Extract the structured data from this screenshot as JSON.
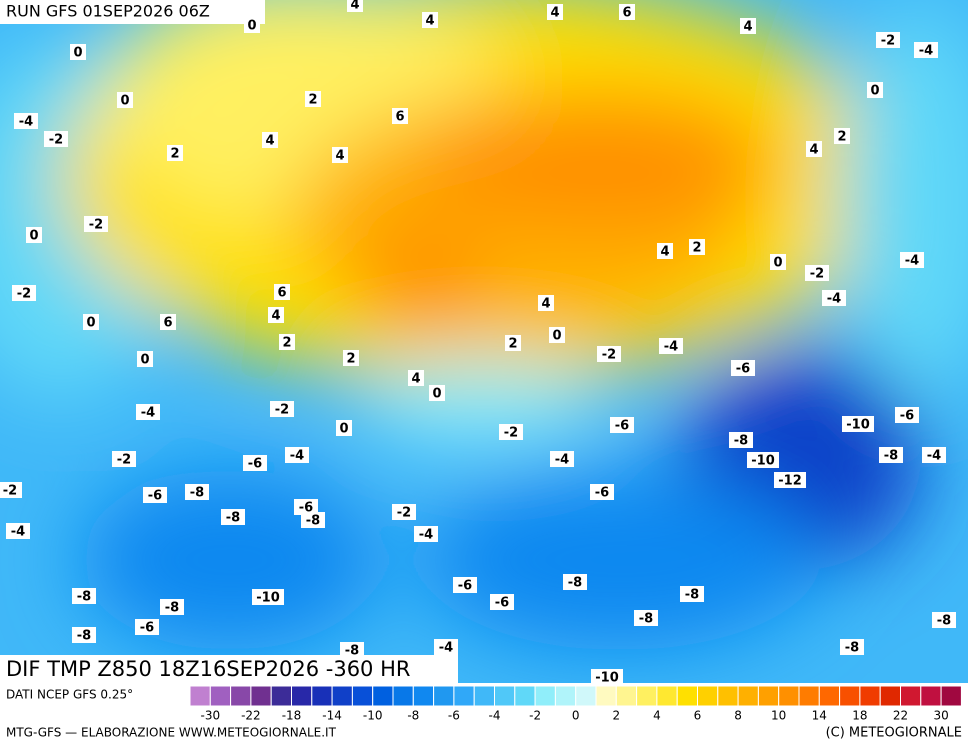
{
  "header": {
    "run": "RUN GFS 01SEP2026 06Z"
  },
  "map": {
    "title": "DIF TMP Z850 18Z16SEP2026 -360 HR",
    "contour_labels": [
      "0",
      "0",
      "0",
      "4",
      "4",
      "4",
      "6",
      "4",
      "-2",
      "-4",
      "0",
      "2",
      "6",
      "-4",
      "-2",
      "2",
      "4",
      "4",
      "2",
      "4",
      "-2",
      "0",
      "4",
      "2",
      "0",
      "-2",
      "-4",
      "-2",
      "6",
      "-4",
      "0",
      "6",
      "4",
      "4",
      "2",
      "0",
      "2",
      "-2",
      "-4",
      "0",
      "2",
      "-6",
      "4",
      "0",
      "-4",
      "-2",
      "-6",
      "-10",
      "0",
      "-6",
      "-2",
      "-8",
      "-4",
      "-2",
      "-6",
      "-4",
      "-10",
      "-8",
      "-4",
      "-2",
      "-6",
      "-8",
      "-6",
      "-12",
      "-6",
      "-8",
      "-8",
      "-2",
      "-4",
      "-4",
      "-6",
      "-8",
      "-8",
      "-10",
      "-8",
      "-6",
      "-8",
      "-8",
      "-8",
      "-8",
      "-6",
      "-4",
      "-8",
      "-8",
      "-10"
    ]
  },
  "legend": {
    "source": "DATI NCEP GFS 0.25°",
    "colors": [
      "#c080d0",
      "#a060c0",
      "#8848a8",
      "#703090",
      "#3c2c98",
      "#2828a8",
      "#1830b8",
      "#1040c8",
      "#0850d8",
      "#0060e0",
      "#0878e8",
      "#1088f0",
      "#2098f0",
      "#30a8f8",
      "#40b8f8",
      "#50c8f8",
      "#60d8f8",
      "#90eefa",
      "#b0f4fa",
      "#d0f8fa",
      "#fffac0",
      "#fff590",
      "#fff060",
      "#ffe830",
      "#ffe000",
      "#ffd000",
      "#ffc000",
      "#ffb000",
      "#ffa000",
      "#ff9000",
      "#ff7c00",
      "#ff6800",
      "#f85000",
      "#f03c00",
      "#e02800",
      "#d01830",
      "#c01040",
      "#a00840"
    ],
    "labels": [
      -30,
      -22,
      -18,
      -14,
      -10,
      -8,
      -6,
      -4,
      -2,
      0,
      2,
      4,
      6,
      8,
      10,
      14,
      18,
      22,
      30
    ]
  },
  "footer": {
    "left": "MTG-GFS — ELABORAZIONE WWW.METEOGIORNALE.IT",
    "right": "(C) METEOGIORNALE"
  }
}
